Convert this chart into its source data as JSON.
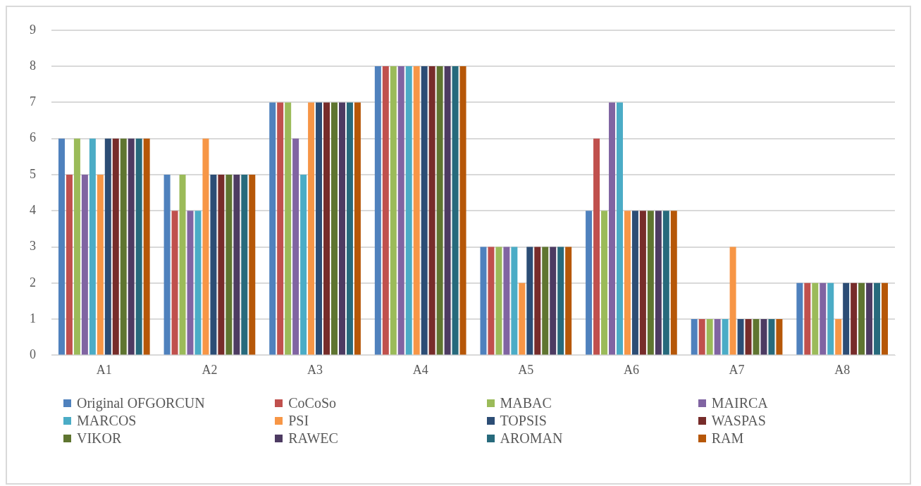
{
  "chart_data": {
    "type": "bar",
    "categories": [
      "A1",
      "A2",
      "A3",
      "A4",
      "A5",
      "A6",
      "A7",
      "A8"
    ],
    "series": [
      {
        "name": "Original OFGORCUN",
        "color": "#4f81bd",
        "values": [
          6,
          5,
          7,
          8,
          3,
          4,
          1,
          2
        ]
      },
      {
        "name": "CoCoSo",
        "color": "#c0504d",
        "values": [
          5,
          4,
          7,
          8,
          3,
          6,
          1,
          2
        ]
      },
      {
        "name": "MABAC",
        "color": "#9bbb59",
        "values": [
          6,
          5,
          7,
          8,
          3,
          4,
          1,
          2
        ]
      },
      {
        "name": "MAIRCA",
        "color": "#8064a2",
        "values": [
          5,
          4,
          6,
          8,
          3,
          7,
          1,
          2
        ]
      },
      {
        "name": "MARCOS",
        "color": "#4bacc6",
        "values": [
          6,
          4,
          5,
          8,
          3,
          7,
          1,
          2
        ]
      },
      {
        "name": "PSI",
        "color": "#f79646",
        "values": [
          5,
          6,
          7,
          8,
          2,
          4,
          3,
          1
        ]
      },
      {
        "name": "TOPSIS",
        "color": "#2c4d75",
        "values": [
          6,
          5,
          7,
          8,
          3,
          4,
          1,
          2
        ]
      },
      {
        "name": "WASPAS",
        "color": "#772c2a",
        "values": [
          6,
          5,
          7,
          8,
          3,
          4,
          1,
          2
        ]
      },
      {
        "name": "VIKOR",
        "color": "#5f7530",
        "values": [
          6,
          5,
          7,
          8,
          3,
          4,
          1,
          2
        ]
      },
      {
        "name": "RAWEC",
        "color": "#4d3b62",
        "values": [
          6,
          5,
          7,
          8,
          3,
          4,
          1,
          2
        ]
      },
      {
        "name": "AROMAN",
        "color": "#276a7c",
        "values": [
          6,
          5,
          7,
          8,
          3,
          4,
          1,
          2
        ]
      },
      {
        "name": "RAM",
        "color": "#b65708",
        "values": [
          6,
          5,
          7,
          8,
          3,
          4,
          1,
          2
        ]
      }
    ],
    "ylim": [
      0,
      9
    ],
    "yticks": [
      0,
      1,
      2,
      3,
      4,
      5,
      6,
      7,
      8,
      9
    ],
    "grid": "y",
    "legend": "bottom"
  }
}
